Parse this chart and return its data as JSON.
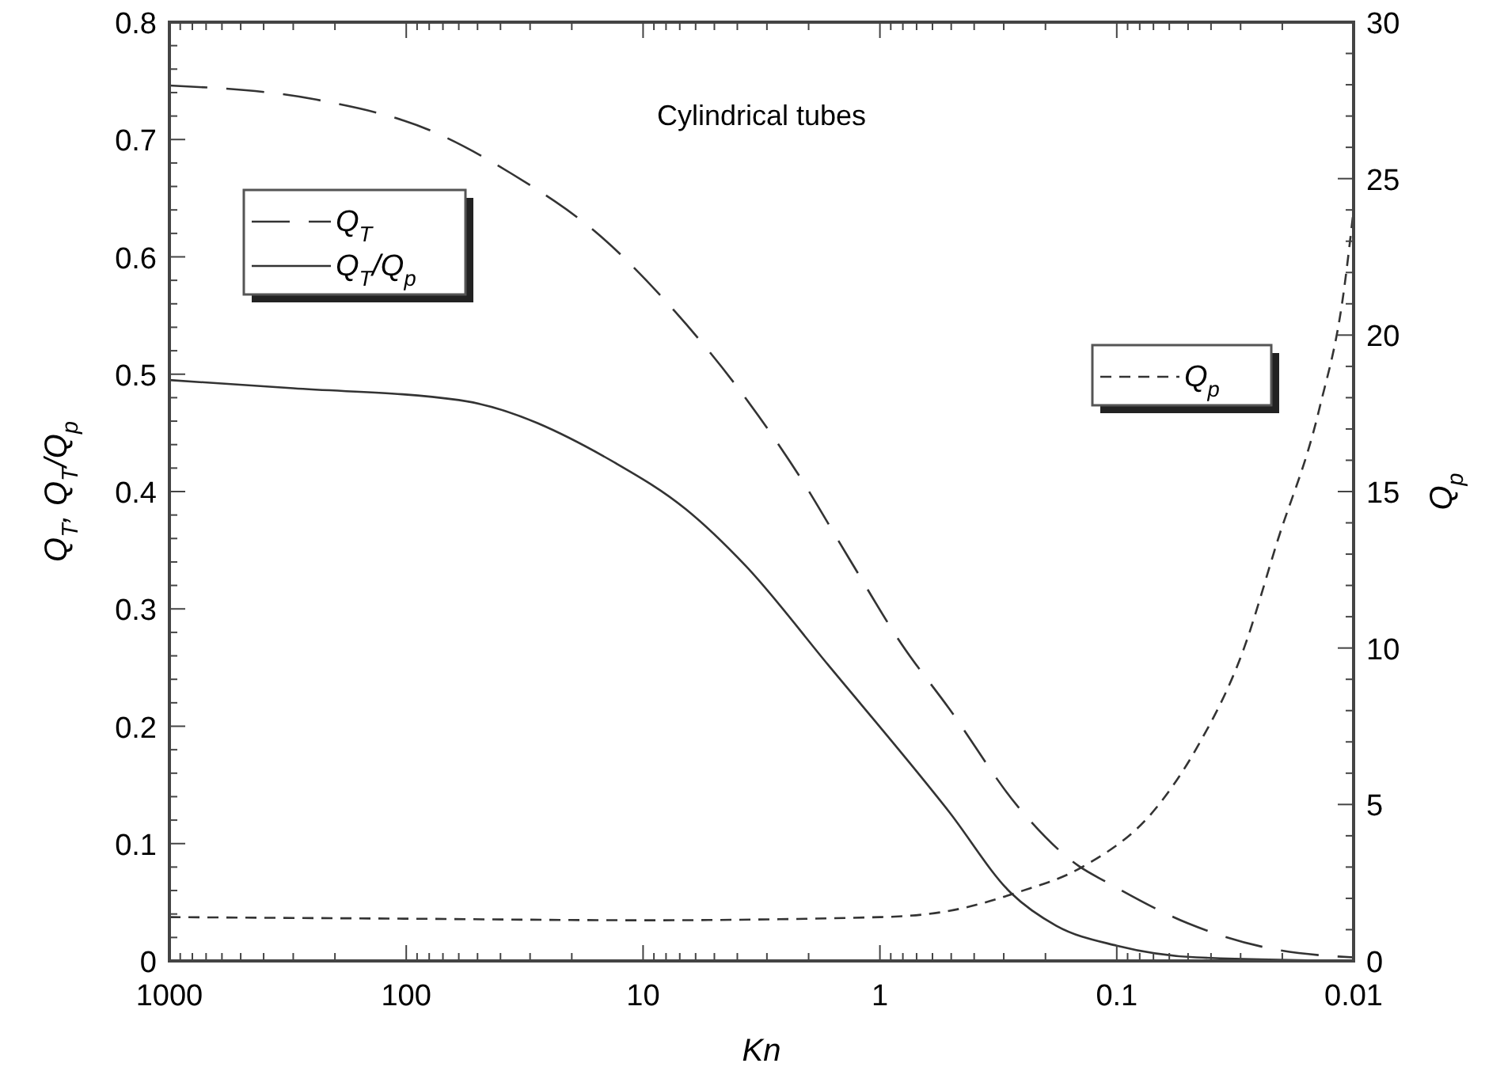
{
  "chart_data": {
    "type": "line",
    "xlabel": "Kn",
    "ylabel": "Q$_{T}$, Q$_{T}$/Q$_{p}$",
    "y2label": "Q$_{p}$",
    "annotations": [
      "Cylindrical tubes"
    ],
    "log": "x",
    "xlim": [
      1000,
      0.01
    ],
    "xticks": [
      1000,
      100,
      10,
      1,
      0.1,
      0.01
    ],
    "ylim": [
      0,
      0.8
    ],
    "yticks": [
      0,
      0.1,
      0.2,
      0.3,
      0.4,
      0.5,
      0.6,
      0.7,
      0.8
    ],
    "y2lim": [
      0,
      30
    ],
    "y2ticks": [
      0,
      5,
      10,
      15,
      20,
      25,
      30
    ],
    "grid": false,
    "legend": "top left",
    "marker": "none",
    "series": [
      {
        "name": "Q$_{T}$",
        "color": "#333333",
        "line_style": "dashed",
        "x": [
          1000,
          240,
          77.6,
          36,
          15,
          7.3,
          3.9,
          2.2,
          1.35,
          0.81,
          0.51,
          0.26,
          0.145,
          0.11,
          0.05,
          0.023,
          0.01
        ],
        "values": [
          0.746,
          0.734,
          0.707,
          0.671,
          0.617,
          0.553,
          0.486,
          0.414,
          0.343,
          0.27,
          0.215,
          0.131,
          0.081,
          0.067,
          0.032,
          0.011,
          0.003
        ]
      },
      {
        "name": "Q$_{T}$/Q$_{p}$",
        "color": "#333333",
        "line_style": "solid",
        "x": [
          1000,
          300,
          60,
          13,
          6.6,
          3.7,
          1.65,
          0.51,
          0.28,
          0.18,
          0.1,
          0.046,
          0.01
        ],
        "values": [
          0.495,
          0.488,
          0.478,
          0.424,
          0.385,
          0.337,
          0.252,
          0.127,
          0.058,
          0.03,
          0.013,
          0.003,
          0
        ]
      },
      {
        "name": "Q$_{p}$",
        "color": "#333333",
        "line_style": "dashed",
        "axis": "y2",
        "x": [
          1000,
          100,
          10,
          1,
          0.51,
          0.26,
          0.14,
          0.068,
          0.046,
          0.029,
          0.021,
          0.014,
          0.011,
          0.01
        ],
        "values": [
          1.4,
          1.35,
          1.3,
          1.4,
          1.6,
          2.2,
          3.0,
          4.9,
          6.8,
          10.0,
          13.4,
          17.6,
          21.4,
          24
        ]
      }
    ]
  }
}
